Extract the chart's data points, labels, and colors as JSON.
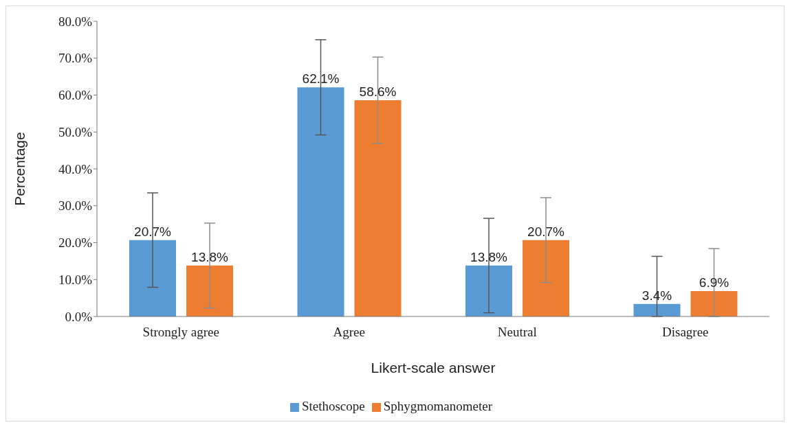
{
  "chart_data": {
    "type": "bar",
    "xlabel": "Likert-scale answer",
    "ylabel": "Percentage",
    "categories": [
      "Strongly agree",
      "Agree",
      "Neutral",
      "Disagree"
    ],
    "series": [
      {
        "name": "Stethoscope",
        "color": "#5b9bd5",
        "values": [
          20.7,
          62.1,
          13.8,
          3.4
        ],
        "value_labels": [
          "20.7%",
          "62.1%",
          "13.8%",
          "3.4%"
        ],
        "errors": [
          12.8,
          12.9,
          12.8,
          [
            0,
            16.3
          ]
        ]
      },
      {
        "name": "Sphygmomanometer",
        "color": "#ed7d31",
        "values": [
          13.8,
          58.6,
          20.7,
          6.9
        ],
        "value_labels": [
          "13.8%",
          "58.6%",
          "20.7%",
          "6.9%"
        ],
        "errors": [
          11.5,
          11.7,
          11.5,
          [
            0,
            18.4
          ]
        ]
      }
    ],
    "ylim": [
      0,
      80
    ],
    "yticks": [
      {
        "value": 0,
        "label": "0.0%"
      },
      {
        "value": 10,
        "label": "10.0%"
      },
      {
        "value": 20,
        "label": "20.0%"
      },
      {
        "value": 30,
        "label": "30.0%"
      },
      {
        "value": 40,
        "label": "40.0%"
      },
      {
        "value": 50,
        "label": "50.0%"
      },
      {
        "value": 60,
        "label": "60.0%"
      },
      {
        "value": 70,
        "label": "70.0%"
      },
      {
        "value": 80,
        "label": "80.0%"
      }
    ],
    "grid": false,
    "legend": "bottom"
  }
}
